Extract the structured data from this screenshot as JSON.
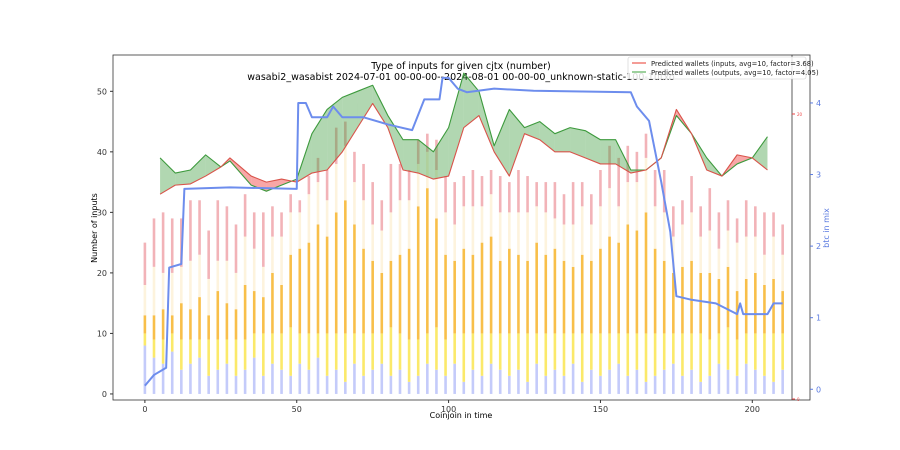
{
  "chart_data": {
    "type": "bar",
    "title": "Type of inputs for given cjtx (number)",
    "subtitle": "wasabi2_wasabist 2024-07-01 00-00-00--2024-08-01 00-00-00_unknown-static-100-1utxo",
    "xlabel": "Coinjoin in time",
    "ylabel": "Number of inputs",
    "y2label": "btc in mix",
    "xlim": [
      -10.5,
      219
    ],
    "ylim": [
      -1,
      56
    ],
    "y2lim": [
      -0.15,
      4.67
    ],
    "xticks": [
      "0",
      "50",
      "100",
      "150",
      "200"
    ],
    "xtick_values": [
      0,
      50,
      100,
      150,
      200
    ],
    "yticks": [
      "0",
      "10",
      "20",
      "30",
      "40",
      "50"
    ],
    "ytick_values": [
      0,
      10,
      20,
      30,
      40,
      50
    ],
    "y2ticks": [
      "0",
      "1",
      "2",
      "3",
      "4"
    ],
    "y2tick_values": [
      0,
      1,
      2,
      3,
      4
    ],
    "third_axis_ticks": [
      "20",
      "0"
    ],
    "legend_position": "top-right",
    "legend": [
      {
        "label": "Predicted wallets (inputs, avg=10, factor=3.68)",
        "color": "#e8564a"
      },
      {
        "label": "Predicted wallets (outputs, avg=10, factor=4.05)",
        "color": "#3d9a3d"
      }
    ],
    "bars": {
      "x_step": 3,
      "segment_names": [
        "blue",
        "yellow",
        "orange",
        "cream",
        "pink"
      ],
      "segment_colors": [
        "#c4cbfa",
        "#fbe96a",
        "#f8bf4a",
        "#fdf3dd",
        "#f2b3b8"
      ],
      "blue": [
        8,
        6,
        5,
        7,
        4,
        5,
        6,
        3,
        4,
        5,
        3,
        4,
        6,
        3,
        5,
        4,
        3,
        5,
        4,
        6,
        3,
        4,
        2,
        5,
        3,
        4,
        5,
        3,
        4,
        2,
        3,
        5,
        4,
        3,
        5,
        2,
        4,
        3,
        5,
        4,
        3,
        4,
        2,
        5,
        3,
        4,
        3,
        5,
        2,
        4,
        3,
        4,
        5,
        3,
        4,
        2,
        3,
        4,
        5,
        3,
        4,
        2,
        3,
        5,
        4,
        3,
        5,
        4,
        3,
        2,
        4
      ],
      "yellow": [
        2,
        3,
        4,
        3,
        5,
        4,
        3,
        6,
        5,
        4,
        6,
        5,
        4,
        7,
        5,
        6,
        8,
        5,
        6,
        4,
        7,
        6,
        8,
        5,
        7,
        6,
        5,
        8,
        6,
        7,
        6,
        5,
        7,
        6,
        5,
        8,
        6,
        7,
        5,
        6,
        7,
        6,
        8,
        5,
        7,
        6,
        7,
        5,
        8,
        6,
        7,
        6,
        5,
        7,
        6,
        8,
        7,
        6,
        5,
        7,
        6,
        8,
        6,
        5,
        7,
        6,
        5,
        6,
        7,
        8,
        6
      ],
      "orange": [
        3,
        4,
        5,
        3,
        6,
        5,
        7,
        4,
        8,
        6,
        5,
        9,
        7,
        6,
        10,
        8,
        12,
        14,
        15,
        18,
        16,
        20,
        22,
        18,
        14,
        12,
        10,
        11,
        13,
        15,
        22,
        24,
        18,
        14,
        12,
        14,
        13,
        15,
        16,
        12,
        14,
        13,
        12,
        15,
        13,
        14,
        12,
        11,
        13,
        12,
        14,
        16,
        15,
        18,
        17,
        20,
        14,
        12,
        10,
        11,
        12,
        10,
        11,
        9,
        10,
        8,
        9,
        10,
        8,
        9,
        7
      ],
      "cream": [
        5,
        8,
        6,
        7,
        6,
        8,
        7,
        6,
        5,
        7,
        6,
        8,
        7,
        5,
        6,
        8,
        7,
        6,
        8,
        7,
        6,
        8,
        9,
        7,
        8,
        6,
        7,
        8,
        9,
        8,
        7,
        6,
        8,
        7,
        6,
        7,
        8,
        6,
        7,
        8,
        6,
        7,
        8,
        6,
        7,
        5,
        6,
        7,
        8,
        6,
        7,
        8,
        6,
        7,
        8,
        9,
        7,
        8,
        6,
        7,
        8,
        6,
        7,
        5,
        6,
        8,
        7,
        6,
        5,
        7,
        6
      ],
      "pink": [
        7,
        8,
        10,
        9,
        8,
        10,
        9,
        8,
        10,
        9,
        8,
        7,
        6,
        9,
        5,
        4,
        3,
        2,
        3,
        4,
        5,
        6,
        4,
        5,
        6,
        7,
        5,
        8,
        6,
        5,
        4,
        3,
        5,
        6,
        7,
        5,
        6,
        5,
        4,
        6,
        5,
        7,
        6,
        4,
        5,
        6,
        5,
        7,
        4,
        5,
        6,
        7,
        8,
        6,
        5,
        4,
        6,
        7,
        5,
        4,
        6,
        5,
        7,
        6,
        5,
        4,
        6,
        5,
        7,
        4,
        5
      ]
    },
    "predicted_inputs": {
      "x": [
        5,
        10,
        15,
        20,
        25,
        28,
        35,
        40,
        45,
        50,
        55,
        60,
        65,
        70,
        75,
        80,
        85,
        90,
        95,
        100,
        105,
        110,
        115,
        120,
        125,
        130,
        135,
        140,
        145,
        150,
        155,
        160,
        165,
        170,
        175,
        180,
        185,
        190,
        195,
        200,
        205
      ],
      "y": [
        33,
        34.5,
        34.7,
        36,
        37.5,
        39,
        36,
        35,
        35.5,
        35,
        36.5,
        37,
        40,
        44,
        48,
        44,
        37,
        36.5,
        35.5,
        36,
        44,
        46,
        40,
        36,
        43,
        42,
        40,
        40,
        39,
        38,
        38,
        36.5,
        37,
        39,
        47,
        43,
        37,
        36,
        39.5,
        39,
        37
      ]
    },
    "predicted_outputs": {
      "x": [
        5,
        10,
        15,
        20,
        25,
        28,
        35,
        40,
        45,
        50,
        55,
        60,
        65,
        70,
        75,
        80,
        85,
        90,
        95,
        100,
        105,
        110,
        115,
        120,
        125,
        130,
        135,
        140,
        145,
        150,
        155,
        160,
        165,
        170,
        175,
        180,
        185,
        190,
        195,
        200,
        205
      ],
      "y": [
        39,
        36.5,
        37,
        39.5,
        37.5,
        38.5,
        34.5,
        33.5,
        34.5,
        35.5,
        43,
        47,
        49,
        50,
        51,
        46,
        42,
        42,
        40,
        44,
        53,
        50,
        41,
        47,
        44,
        45,
        43,
        44,
        43.5,
        42,
        42,
        37,
        37,
        39,
        46,
        43,
        39,
        36,
        38,
        39,
        42.5
      ]
    },
    "btc_in_mix": {
      "x": [
        0,
        3,
        7,
        8,
        12,
        13,
        28,
        50,
        50.5,
        53,
        55,
        60,
        62,
        65,
        72,
        80,
        88,
        92,
        97,
        98,
        100,
        103,
        106,
        115,
        128,
        160,
        162,
        166,
        170,
        173,
        175,
        180,
        188,
        195,
        196,
        197,
        205,
        207,
        210
      ],
      "y": [
        0.05,
        0.2,
        0.3,
        1.7,
        1.75,
        2.8,
        2.82,
        2.8,
        4.0,
        4.0,
        3.8,
        3.8,
        3.95,
        3.8,
        3.8,
        3.7,
        3.62,
        4.05,
        4.05,
        4.35,
        4.35,
        4.2,
        4.15,
        4.2,
        4.17,
        4.15,
        3.95,
        3.75,
        2.9,
        2.2,
        1.3,
        1.25,
        1.2,
        1.05,
        1.2,
        1.05,
        1.05,
        1.2,
        1.2
      ]
    }
  }
}
